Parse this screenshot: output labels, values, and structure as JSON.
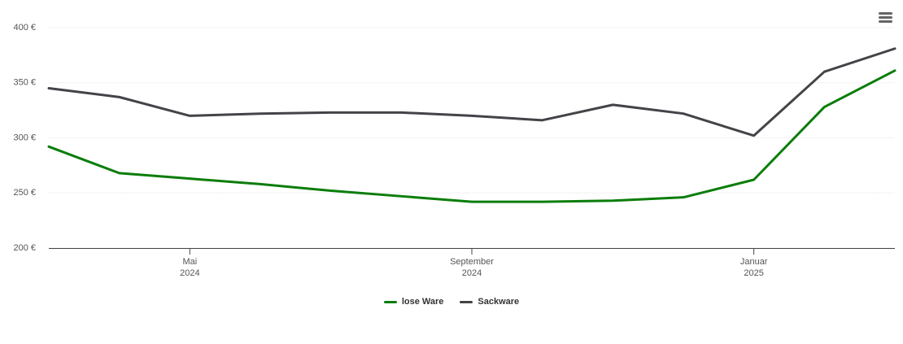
{
  "chart_data": {
    "type": "line",
    "x": [
      "2024-03",
      "2024-04",
      "2024-05",
      "2024-06",
      "2024-07",
      "2024-08",
      "2024-09",
      "2024-10",
      "2024-11",
      "2024-12",
      "2025-01",
      "2025-02",
      "2025-03"
    ],
    "xlim": [
      "2024-03",
      "2025-03"
    ],
    "xticks": [
      {
        "value": "2024-05",
        "label": "Mai\n2024"
      },
      {
        "value": "2024-09",
        "label": "September\n2024"
      },
      {
        "value": "2025-01",
        "label": "Januar\n2025"
      }
    ],
    "ylim": [
      200,
      400
    ],
    "yticks": [
      {
        "value": 200,
        "label": "200 €"
      },
      {
        "value": 250,
        "label": "250 €"
      },
      {
        "value": 300,
        "label": "300 €"
      },
      {
        "value": 350,
        "label": "350 €"
      },
      {
        "value": 400,
        "label": "400 €"
      }
    ],
    "grid": true,
    "legend": "bottom",
    "series": [
      {
        "name": "lose Ware",
        "color": "#0a7d0a",
        "values": [
          292,
          268,
          263,
          258,
          252,
          247,
          242,
          242,
          243,
          246,
          262,
          328,
          361
        ]
      },
      {
        "name": "Sackware",
        "color": "#434348",
        "values": [
          345,
          337,
          320,
          322,
          323,
          323,
          320,
          316,
          330,
          322,
          302,
          360,
          381
        ]
      }
    ]
  }
}
